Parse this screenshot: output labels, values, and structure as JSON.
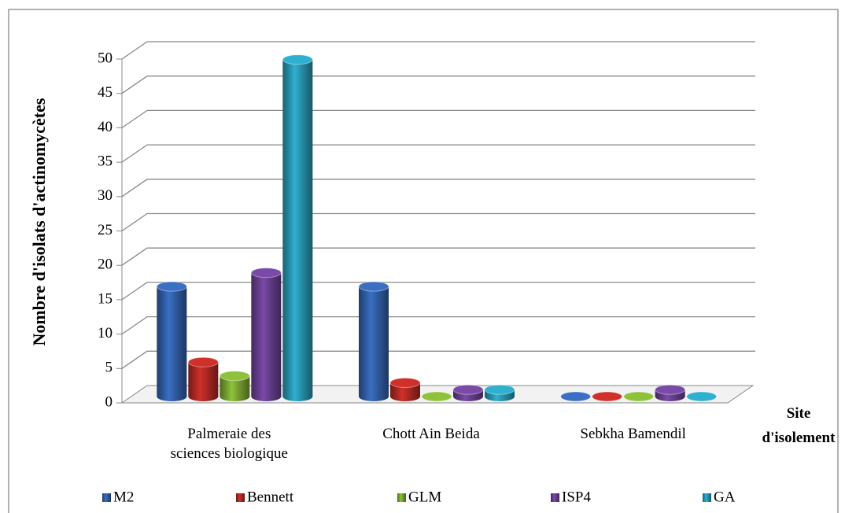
{
  "chart_data": {
    "type": "bar3d",
    "y_label": "Nombre d'isolats d'actinomycètes",
    "x_label": "Site d'isolement",
    "categories": [
      "Palmeraie des sciences biologique",
      "Chott Ain Beida",
      "Sebkha Bamendil"
    ],
    "series": [
      {
        "name": "M2",
        "color": "#3a6fc4",
        "values": [
          16,
          16,
          0
        ]
      },
      {
        "name": "Bennett",
        "color": "#d0302a",
        "values": [
          5,
          2,
          0
        ]
      },
      {
        "name": "GLM",
        "color": "#8fc23a",
        "values": [
          3,
          0,
          0
        ]
      },
      {
        "name": "ISP4",
        "color": "#7a4aa8",
        "values": [
          18,
          1,
          1
        ]
      },
      {
        "name": "GA",
        "color": "#2fb0d0",
        "values": [
          49,
          1,
          0
        ]
      }
    ],
    "ylim": [
      0,
      50
    ],
    "yticks": [
      0,
      5,
      10,
      15,
      20,
      25,
      30,
      35,
      40,
      45,
      50
    ],
    "grid": true,
    "legend": "bottom"
  }
}
